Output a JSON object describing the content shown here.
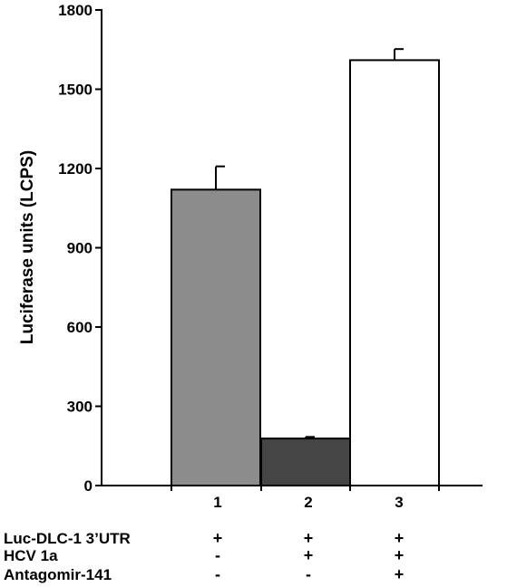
{
  "chart_data": {
    "type": "bar",
    "categories": [
      "1",
      "2",
      "3"
    ],
    "values": [
      1120,
      178,
      1610
    ],
    "errors": [
      88,
      6,
      42
    ],
    "bar_colors": [
      "#8c8c8c",
      "#454545",
      "#ffffff"
    ],
    "ylabel": "Luciferase units (LCPS)",
    "xlabel": "",
    "ylim": [
      0,
      1800
    ],
    "yticks": [
      "0",
      "300",
      "600",
      "900",
      "1200",
      "1500",
      "1800"
    ],
    "grid": false,
    "legend": "none"
  },
  "condition_table": {
    "rows": [
      {
        "label": "Luc-DLC-1 3’UTR",
        "signs": [
          "+",
          "+",
          "+"
        ]
      },
      {
        "label": "HCV 1a",
        "signs": [
          "-",
          "+",
          "+"
        ]
      },
      {
        "label": "Antagomir-141",
        "signs": [
          "-",
          "-",
          "+"
        ]
      }
    ]
  }
}
